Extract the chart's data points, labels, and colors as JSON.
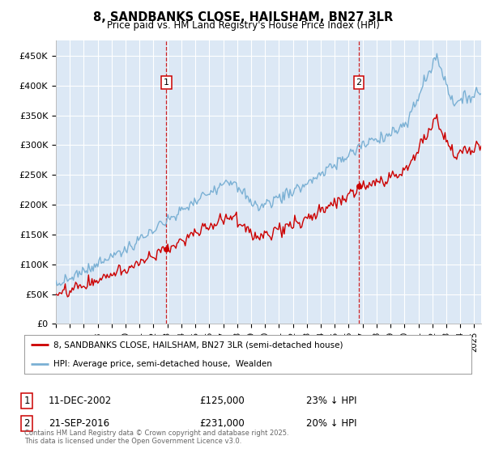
{
  "title": "8, SANDBANKS CLOSE, HAILSHAM, BN27 3LR",
  "subtitle": "Price paid vs. HM Land Registry's House Price Index (HPI)",
  "background_color": "#ffffff",
  "plot_bg_color": "#dce8f5",
  "ylim": [
    0,
    475000
  ],
  "yticks": [
    0,
    50000,
    100000,
    150000,
    200000,
    250000,
    300000,
    350000,
    400000,
    450000
  ],
  "ytick_labels": [
    "£0",
    "£50K",
    "£100K",
    "£150K",
    "£200K",
    "£250K",
    "£300K",
    "£350K",
    "£400K",
    "£450K"
  ],
  "hpi_color": "#7ab0d4",
  "price_color": "#cc0000",
  "sale1_year": 2002.92,
  "sale1_price": 125000,
  "sale2_year": 2016.72,
  "sale2_price": 231000,
  "legend_label1": "8, SANDBANKS CLOSE, HAILSHAM, BN27 3LR (semi-detached house)",
  "legend_label2": "HPI: Average price, semi-detached house,  Wealden",
  "footnote": "Contains HM Land Registry data © Crown copyright and database right 2025.\nThis data is licensed under the Open Government Licence v3.0.",
  "xstart_year": 1995,
  "xend_year": 2025
}
